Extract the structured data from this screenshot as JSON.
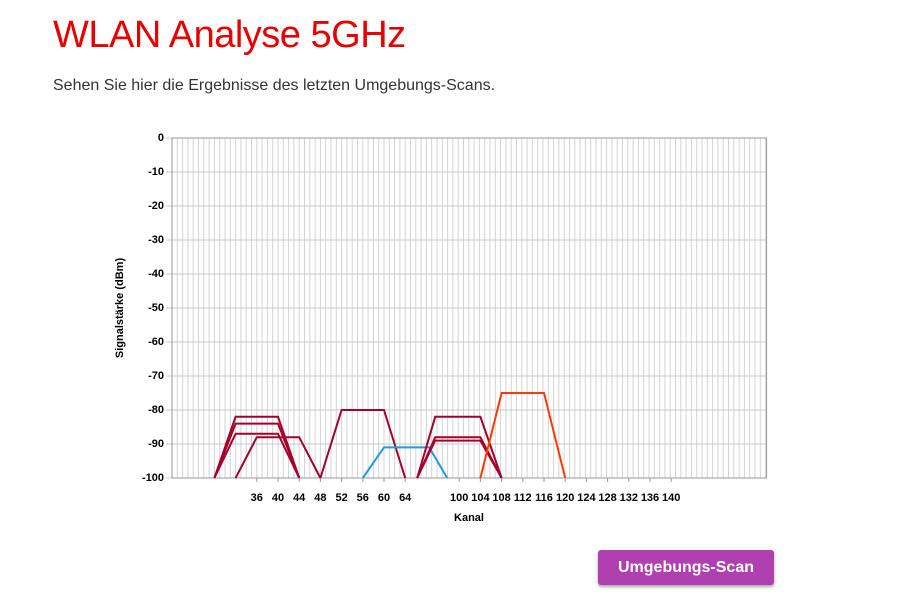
{
  "header": {
    "title": "WLAN Analyse 5GHz",
    "subtitle": "Sehen Sie hier die Ergebnisse des letzten Umgebungs-Scans."
  },
  "chart_data": {
    "type": "line",
    "xlabel": "Kanal",
    "ylabel": "Signalstärke (dBm)",
    "xlim": [
      20,
      158
    ],
    "ylim": [
      -100,
      0
    ],
    "xticks": [
      36,
      40,
      44,
      48,
      52,
      56,
      60,
      64,
      100,
      104,
      108,
      112,
      116,
      120,
      124,
      128,
      132,
      136,
      140
    ],
    "yticks": [
      0,
      -10,
      -20,
      -30,
      -40,
      -50,
      -60,
      -70,
      -80,
      -90,
      -100
    ],
    "grid": true,
    "series": [
      {
        "color": "#a3002c",
        "x": [
          28,
          32,
          40,
          44
        ],
        "values": [
          -100,
          -82,
          -82,
          -100
        ]
      },
      {
        "color": "#a3002c",
        "x": [
          28,
          32,
          40,
          44
        ],
        "values": [
          -100,
          -84,
          -84,
          -100
        ]
      },
      {
        "color": "#a3002c",
        "x": [
          28,
          32,
          40,
          44
        ],
        "values": [
          -100,
          -87,
          -87,
          -100
        ]
      },
      {
        "color": "#a3002c",
        "x": [
          32,
          36,
          44,
          48
        ],
        "values": [
          -100,
          -88,
          -88,
          -100
        ]
      },
      {
        "color": "#a3002c",
        "x": [
          48,
          52,
          60,
          64
        ],
        "values": [
          -100,
          -80,
          -80,
          -100
        ]
      },
      {
        "color": "#1e9be0",
        "x": [
          56,
          60,
          80,
          92
        ],
        "values": [
          -100,
          -91,
          -91,
          -100
        ]
      },
      {
        "color": "#a3002c",
        "x": [
          72,
          84,
          104,
          108
        ],
        "values": [
          -100,
          -82,
          -82,
          -100
        ]
      },
      {
        "color": "#a3002c",
        "x": [
          72,
          84,
          104,
          108
        ],
        "values": [
          -100,
          -88,
          -88,
          -100
        ]
      },
      {
        "color": "#a3002c",
        "x": [
          72,
          84,
          104,
          108
        ],
        "values": [
          -100,
          -89,
          -89,
          -100
        ]
      },
      {
        "color": "#ff3a00",
        "x": [
          104,
          108,
          116,
          120
        ],
        "values": [
          -100,
          -75,
          -75,
          -100
        ]
      }
    ]
  },
  "button": {
    "label": "Umgebungs-Scan"
  }
}
